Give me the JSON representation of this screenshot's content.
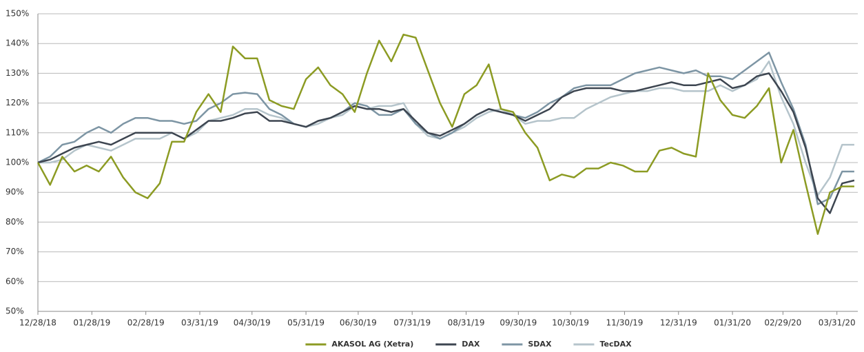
{
  "chart_data": {
    "type": "line",
    "x": [
      "12/28/18",
      "01/04/19",
      "01/11/19",
      "01/18/19",
      "01/25/19",
      "02/01/19",
      "02/08/19",
      "02/15/19",
      "02/22/19",
      "03/01/19",
      "03/08/19",
      "03/15/19",
      "03/22/19",
      "03/29/19",
      "04/05/19",
      "04/12/19",
      "04/19/19",
      "04/26/19",
      "05/03/19",
      "05/10/19",
      "05/17/19",
      "05/24/19",
      "05/31/19",
      "06/07/19",
      "06/14/19",
      "06/21/19",
      "06/28/19",
      "07/05/19",
      "07/12/19",
      "07/19/19",
      "07/26/19",
      "08/02/19",
      "08/09/19",
      "08/16/19",
      "08/23/19",
      "08/30/19",
      "09/06/19",
      "09/13/19",
      "09/20/19",
      "09/27/19",
      "10/04/19",
      "10/11/19",
      "10/18/19",
      "10/25/19",
      "11/01/19",
      "11/08/19",
      "11/15/19",
      "11/22/19",
      "11/29/19",
      "12/06/19",
      "12/13/19",
      "12/20/19",
      "12/27/19",
      "01/03/20",
      "01/10/20",
      "01/17/20",
      "01/24/20",
      "01/31/20",
      "02/07/20",
      "02/14/20",
      "02/21/20",
      "02/28/20",
      "03/06/20",
      "03/13/20",
      "03/20/20",
      "03/27/20",
      "04/03/20",
      "04/10/20"
    ],
    "series": [
      {
        "name": "AKASOL AG (Xetra)",
        "color": "#8c9b23",
        "values": [
          100,
          92.5,
          102,
          97,
          99,
          97,
          102,
          95,
          90,
          88,
          93,
          107,
          107,
          117,
          123,
          117,
          139,
          135,
          135,
          121,
          119,
          118,
          128,
          132,
          126,
          123,
          117,
          130,
          141,
          134,
          143,
          142,
          131,
          120,
          112,
          123,
          126,
          133,
          118,
          117,
          110,
          105,
          94,
          96,
          95,
          98,
          98,
          100,
          99,
          97,
          97,
          104,
          105,
          103,
          102,
          130,
          121,
          116,
          115,
          119,
          125,
          100,
          111,
          93,
          76,
          90,
          92,
          92
        ]
      },
      {
        "name": "DAX",
        "color": "#3d4550",
        "values": [
          100,
          101,
          103,
          105,
          106,
          107,
          106,
          108,
          110,
          110,
          110,
          110,
          108,
          111,
          114,
          114,
          115,
          116.5,
          117,
          114,
          114,
          113,
          112,
          114,
          115,
          117,
          119,
          118,
          118,
          117,
          118,
          114,
          110,
          109,
          111,
          113,
          116,
          118,
          117,
          116,
          114,
          116,
          118,
          122,
          124,
          125,
          125,
          125,
          124,
          124,
          125,
          126,
          127,
          126,
          126,
          127,
          128,
          125,
          126,
          129,
          130,
          124,
          117,
          105,
          88,
          83,
          93,
          94
        ]
      },
      {
        "name": "SDAX",
        "color": "#7d95a4",
        "values": [
          100,
          102,
          106,
          107,
          110,
          112,
          110,
          113,
          115,
          115,
          114,
          114,
          113,
          114,
          118,
          120,
          123,
          123.5,
          123,
          118,
          116,
          113,
          112,
          114,
          115,
          117,
          120,
          119,
          116,
          116,
          118,
          113,
          110,
          108,
          110,
          113,
          116,
          118,
          117,
          116,
          115,
          117,
          120,
          122,
          125,
          126,
          126,
          126,
          128,
          130,
          131,
          132,
          131,
          130,
          131,
          129,
          129,
          128,
          131,
          134,
          137,
          127,
          118,
          106,
          86,
          88,
          97,
          97
        ]
      },
      {
        "name": "TecDAX",
        "color": "#b5c4cb",
        "values": [
          100,
          100,
          101,
          104,
          106,
          105,
          104,
          106,
          108,
          108,
          108,
          110,
          108,
          110,
          114,
          115,
          116,
          118,
          118,
          116,
          115,
          113,
          112,
          113,
          115,
          116,
          119,
          118,
          119,
          119,
          120,
          113,
          109,
          108,
          110,
          112,
          115,
          117,
          118,
          116,
          113,
          114,
          114,
          115,
          115,
          118,
          120,
          122,
          123,
          124,
          124,
          125,
          125,
          124,
          124,
          124,
          126,
          124,
          126,
          128,
          134,
          122,
          113,
          100,
          89,
          95,
          106,
          106
        ]
      }
    ],
    "xlim": [
      "12/28/18",
      "04/12/20"
    ],
    "xticks": [
      "12/28/18",
      "01/28/19",
      "02/28/19",
      "03/31/19",
      "04/30/19",
      "05/31/19",
      "06/30/19",
      "07/31/19",
      "08/31/19",
      "09/30/19",
      "10/30/19",
      "11/30/19",
      "12/31/19",
      "01/31/20",
      "02/29/20",
      "03/31/20"
    ],
    "ylim": [
      50,
      150
    ],
    "yticks": [
      {
        "value": 50,
        "label": "50%"
      },
      {
        "value": 60,
        "label": "60%"
      },
      {
        "value": 70,
        "label": "70%"
      },
      {
        "value": 80,
        "label": "80%"
      },
      {
        "value": 90,
        "label": "90%"
      },
      {
        "value": 100,
        "label": "100%"
      },
      {
        "value": 110,
        "label": "110%"
      },
      {
        "value": 120,
        "label": "120%"
      },
      {
        "value": 130,
        "label": "130%"
      },
      {
        "value": 140,
        "label": "140%"
      },
      {
        "value": 150,
        "label": "150%"
      }
    ],
    "grid": true,
    "legend": "bottom"
  }
}
